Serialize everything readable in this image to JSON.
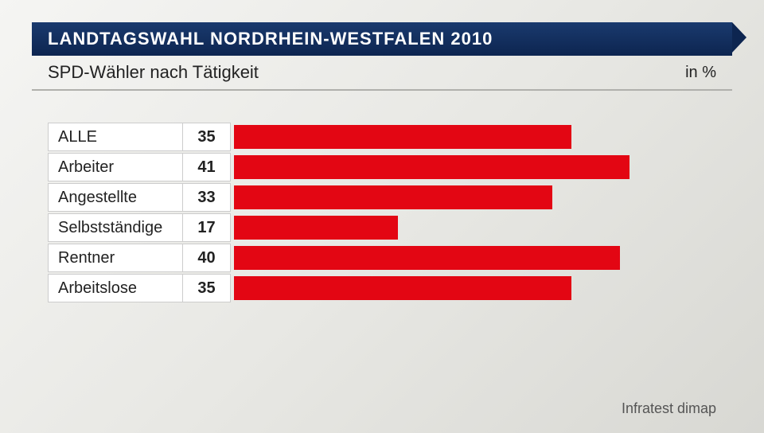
{
  "header": {
    "title": "LANDTAGSWAHL NORDRHEIN-WESTFALEN 2010",
    "subtitle": "SPD-Wähler nach Tätigkeit",
    "unit": "in %"
  },
  "chart": {
    "type": "bar",
    "bar_color": "#e30613",
    "label_bg": "#ffffff",
    "value_bg": "#ffffff",
    "border_color": "#cccccc",
    "max_value": 50,
    "bar_area_width": 600,
    "rows": [
      {
        "label": "ALLE",
        "value": 35
      },
      {
        "label": "Arbeiter",
        "value": 41
      },
      {
        "label": "Angestellte",
        "value": 33
      },
      {
        "label": "Selbstständige",
        "value": 17
      },
      {
        "label": "Rentner",
        "value": 40
      },
      {
        "label": "Arbeitslose",
        "value": 35
      }
    ]
  },
  "source": "Infratest dimap",
  "colors": {
    "title_bar_bg": "#0d2550",
    "title_text": "#ffffff",
    "text": "#222222",
    "source_text": "#555555"
  },
  "fonts": {
    "title_size": 22,
    "subtitle_size": 22,
    "label_size": 20,
    "value_size": 20,
    "source_size": 18
  }
}
